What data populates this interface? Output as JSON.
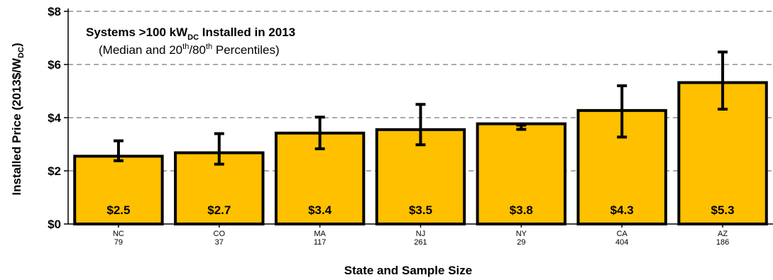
{
  "chart_data": {
    "type": "bar",
    "title": {
      "main_prefix": "Systems >100 kW",
      "main_sub": "DC",
      "main_suffix": " Installed in 2013",
      "sub_a": "(Median and 20",
      "sub_sup1": "th",
      "sub_b": "/80",
      "sub_sup2": "th",
      "sub_c": " Percentiles)"
    },
    "ylabel": {
      "prefix": "Installed Price (2013$/W",
      "sub": "DC",
      "suffix": ")"
    },
    "xlabel": "State and Sample Size",
    "ylim": [
      0,
      8
    ],
    "yticks": [
      {
        "value": 0,
        "label": "$0"
      },
      {
        "value": 2,
        "label": "$2"
      },
      {
        "value": 4,
        "label": "$4"
      },
      {
        "value": 6,
        "label": "$6"
      },
      {
        "value": 8,
        "label": "$8"
      }
    ],
    "grid": true,
    "bar_color": "#FFC000",
    "categories": [
      {
        "state": "NC",
        "n": "79"
      },
      {
        "state": "CO",
        "n": "37"
      },
      {
        "state": "MA",
        "n": "117"
      },
      {
        "state": "NJ",
        "n": "261"
      },
      {
        "state": "NY",
        "n": "29"
      },
      {
        "state": "CA",
        "n": "404"
      },
      {
        "state": "AZ",
        "n": "186"
      }
    ],
    "values": [
      2.55,
      2.68,
      3.42,
      3.55,
      3.77,
      4.27,
      5.32
    ],
    "value_labels": [
      "$2.5",
      "$2.7",
      "$3.4",
      "$3.5",
      "$3.8",
      "$4.3",
      "$5.3"
    ],
    "p20": [
      2.38,
      2.25,
      2.83,
      2.98,
      3.56,
      3.27,
      4.32
    ],
    "p80": [
      3.13,
      3.4,
      4.02,
      4.5,
      3.72,
      5.2,
      6.47
    ]
  }
}
